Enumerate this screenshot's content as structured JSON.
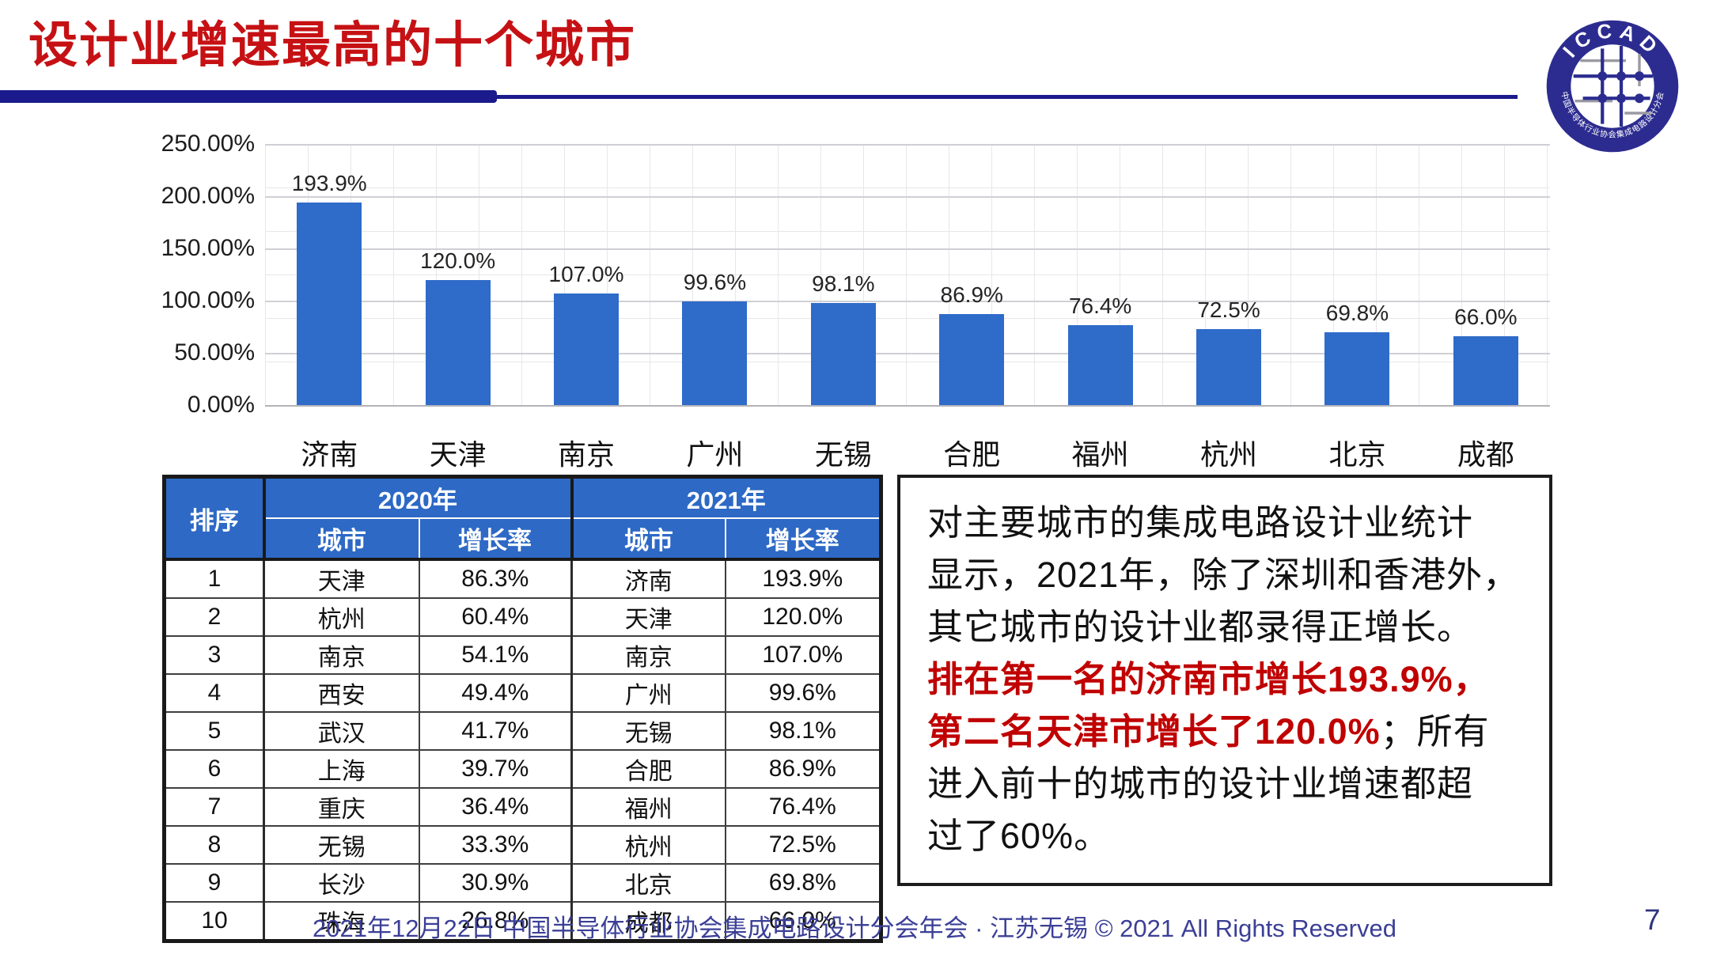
{
  "slide": {
    "title": "设计业增速最高的十个城市",
    "footer": "2021年12月22日 中国半导体行业协会集成电路设计分会年会 · 江苏无锡 © 2021 All Rights Reserved",
    "page_number": "7",
    "accent_colors": {
      "title_red": "#c61114",
      "divider_navy": "#1a1a8c",
      "bar_blue": "#2f6bc9",
      "table_header_blue": "#2d69c5",
      "highlight_red": "#c00000",
      "footer_blue": "#3b3f96"
    }
  },
  "logo": {
    "top_text": "ICCAD",
    "ring_text": "中国半导体行业协会集成电路设计分会"
  },
  "chart_data": {
    "type": "bar",
    "categories": [
      "济南",
      "天津",
      "南京",
      "广州",
      "无锡",
      "合肥",
      "福州",
      "杭州",
      "北京",
      "成都"
    ],
    "values": [
      193.9,
      120.0,
      107.0,
      99.6,
      98.1,
      86.9,
      76.4,
      72.5,
      69.8,
      66.0
    ],
    "labels": [
      "193.9%",
      "120.0%",
      "107.0%",
      "99.6%",
      "98.1%",
      "86.9%",
      "76.4%",
      "72.5%",
      "69.8%",
      "66.0%"
    ],
    "yticks": [
      "250.00%",
      "200.00%",
      "150.00%",
      "100.00%",
      "50.00%",
      "0.00%"
    ],
    "ylim": [
      0,
      250
    ],
    "bar_color": "#2f6bc9",
    "grid": true,
    "legend": "none",
    "title": "",
    "xlabel": "",
    "ylabel": ""
  },
  "table": {
    "col_rank": "排序",
    "col_2020": "2020年",
    "col_2021": "2021年",
    "col_city_2020": "城市",
    "col_growth_2020": "增长率",
    "col_city_2021": "城市",
    "col_growth_2021": "增长率",
    "rows": [
      {
        "rank": "1",
        "city2020": "天津",
        "growth2020": "86.3%",
        "city2021": "济南",
        "growth2021": "193.9%"
      },
      {
        "rank": "2",
        "city2020": "杭州",
        "growth2020": "60.4%",
        "city2021": "天津",
        "growth2021": "120.0%"
      },
      {
        "rank": "3",
        "city2020": "南京",
        "growth2020": "54.1%",
        "city2021": "南京",
        "growth2021": "107.0%"
      },
      {
        "rank": "4",
        "city2020": "西安",
        "growth2020": "49.4%",
        "city2021": "广州",
        "growth2021": "99.6%"
      },
      {
        "rank": "5",
        "city2020": "武汉",
        "growth2020": "41.7%",
        "city2021": "无锡",
        "growth2021": "98.1%"
      },
      {
        "rank": "6",
        "city2020": "上海",
        "growth2020": "39.7%",
        "city2021": "合肥",
        "growth2021": "86.9%"
      },
      {
        "rank": "7",
        "city2020": "重庆",
        "growth2020": "36.4%",
        "city2021": "福州",
        "growth2021": "76.4%"
      },
      {
        "rank": "8",
        "city2020": "无锡",
        "growth2020": "33.3%",
        "city2021": "杭州",
        "growth2021": "72.5%"
      },
      {
        "rank": "9",
        "city2020": "长沙",
        "growth2020": "30.9%",
        "city2021": "北京",
        "growth2021": "69.8%"
      },
      {
        "rank": "10",
        "city2020": "珠海",
        "growth2020": "26.8%",
        "city2021": "成都",
        "growth2021": "66.0%"
      }
    ]
  },
  "commentary": {
    "seg1_black": "对主要城市的集成电路设计业统计\n显示，2021年，除了深圳和香港外，\n其它城市的设计业都录得正增长。\n",
    "seg2_red": "排在第一名的济南市增长193.9%，\n第二名天津市增长了120.0%",
    "seg3_black": "；所有\n进入前十的城市的设计业增速都超\n过了60%。"
  }
}
